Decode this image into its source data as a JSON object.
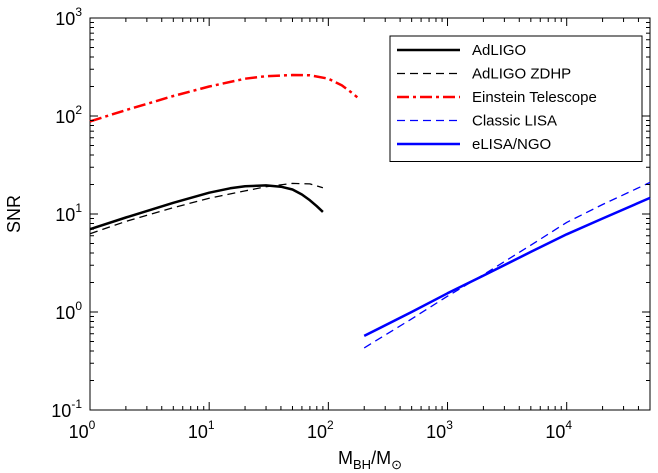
{
  "chart_data": {
    "type": "line",
    "title": "",
    "xlabel": {
      "base": "M",
      "sub1": "BH",
      "mid": "/M",
      "sub2": "⊙"
    },
    "ylabel": "SNR",
    "xscale": "log",
    "yscale": "log",
    "xlim": [
      1,
      50000
    ],
    "ylim": [
      0.1,
      1000
    ],
    "x_ticks": [
      {
        "base": "10",
        "exp": "0",
        "value": 1
      },
      {
        "base": "10",
        "exp": "1",
        "value": 10
      },
      {
        "base": "10",
        "exp": "2",
        "value": 100
      },
      {
        "base": "10",
        "exp": "3",
        "value": 1000
      },
      {
        "base": "10",
        "exp": "4",
        "value": 10000
      }
    ],
    "y_ticks": [
      {
        "base": "10",
        "exp": "-1",
        "value": 0.1
      },
      {
        "base": "10",
        "exp": "0",
        "value": 1
      },
      {
        "base": "10",
        "exp": "1",
        "value": 10
      },
      {
        "base": "10",
        "exp": "2",
        "value": 100
      },
      {
        "base": "10",
        "exp": "3",
        "value": 1000
      }
    ],
    "grid": false,
    "legend_position": "top-right",
    "series": [
      {
        "name": "AdLIGO",
        "color": "#000000",
        "style": "solid",
        "width": 2.5,
        "x": [
          1,
          2,
          5,
          10,
          15,
          20,
          30,
          40,
          50,
          60,
          70,
          80,
          90
        ],
        "y": [
          7.0,
          9.2,
          13.0,
          16.5,
          18.3,
          19.2,
          19.6,
          19.0,
          17.8,
          15.8,
          13.8,
          12.0,
          10.5
        ]
      },
      {
        "name": "AdLIGO ZDHP",
        "color": "#000000",
        "style": "dashed",
        "width": 1.3,
        "x": [
          1,
          2,
          5,
          10,
          20,
          30,
          50,
          70,
          90
        ],
        "y": [
          6.3,
          8.4,
          11.6,
          14.5,
          17.2,
          19.0,
          20.5,
          20.3,
          18.5
        ]
      },
      {
        "name": "Einstein Telescope",
        "color": "#ff0000",
        "style": "dashdot",
        "width": 2.5,
        "x": [
          1,
          2,
          5,
          10,
          20,
          30,
          50,
          70,
          100,
          130,
          160,
          175
        ],
        "y": [
          88,
          115,
          160,
          200,
          240,
          255,
          262,
          260,
          240,
          205,
          170,
          155
        ]
      },
      {
        "name": "Classic LISA",
        "color": "#0000ff",
        "style": "dashed",
        "width": 1.3,
        "x": [
          200,
          500,
          1000,
          2000,
          5000,
          10000,
          20000,
          50000
        ],
        "y": [
          0.43,
          0.85,
          1.45,
          2.4,
          4.8,
          8.2,
          12.5,
          21.0
        ]
      },
      {
        "name": "eLISA/NGO",
        "color": "#0000ff",
        "style": "solid",
        "width": 2.5,
        "x": [
          200,
          500,
          1000,
          2000,
          5000,
          10000,
          20000,
          50000
        ],
        "y": [
          0.57,
          1.0,
          1.55,
          2.35,
          4.1,
          6.2,
          9.0,
          14.6
        ]
      }
    ]
  }
}
